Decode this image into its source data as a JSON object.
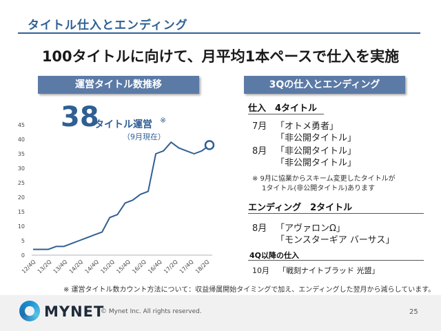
{
  "slide": {
    "title": "タイトル仕入とエンディング",
    "headline": "100タイトルに向けて、月平均1本ペースで仕入を実施"
  },
  "left_panel": {
    "pill": "運営タイトル数推移",
    "big_number": "38",
    "big_label": "タイトル運営",
    "big_sup": "※",
    "big_sub": "（9月現在）"
  },
  "chart_data": {
    "type": "line",
    "ylim": [
      0,
      45
    ],
    "yticks": [
      "0",
      "5",
      "10",
      "15",
      "20",
      "25",
      "30",
      "35",
      "40",
      "45"
    ],
    "xtick_labels": [
      "12/4Q",
      "13/2Q",
      "13/4Q",
      "14/2Q",
      "14/4Q",
      "15/2Q",
      "15/4Q",
      "16/2Q",
      "16/4Q",
      "17/2Q",
      "17/4Q",
      "18/2Q"
    ],
    "values": [
      2,
      2,
      2,
      3,
      3,
      4,
      5,
      6,
      7,
      8,
      13,
      14,
      18,
      19,
      21,
      22,
      35,
      36,
      39,
      37,
      36,
      35,
      36,
      38
    ],
    "line_color": "#2f5f93"
  },
  "right_panel": {
    "pill": "3Qの仕入とエンディング",
    "acquire_head": "仕入　4タイトル",
    "acquire_rows": [
      {
        "month": "7月",
        "title": "「オトメ勇者」"
      },
      {
        "month": "",
        "title": "「非公開タイトル」"
      },
      {
        "month": "8月",
        "title": "「非公開タイトル」"
      },
      {
        "month": "",
        "title": "「非公開タイトル」"
      }
    ],
    "note_line1": "※  9月に協業からスキーム変更したタイトルが",
    "note_line2": "1タイトル(非公開タイトル)あります",
    "ending_head": "エンディング　2タイトル",
    "ending_rows": [
      {
        "month": "8月",
        "title": "「アヴァロンΩ」"
      },
      {
        "month": "",
        "title": "「モンスターギア バーサス」"
      }
    ],
    "q4_head": "4Q以降の仕入",
    "q4_rows": [
      {
        "month": "10月",
        "title": "「戦刻ナイトブラッド 光盟」"
      }
    ]
  },
  "footer": {
    "note": "※ 運営タイトル数カウント方法について：収益帰属開始タイミングで加え、エンディングした翌月から減らしています。",
    "logo": "MYNET",
    "copyright": "© Mynet Inc. All rights reserved.",
    "page": "25"
  }
}
